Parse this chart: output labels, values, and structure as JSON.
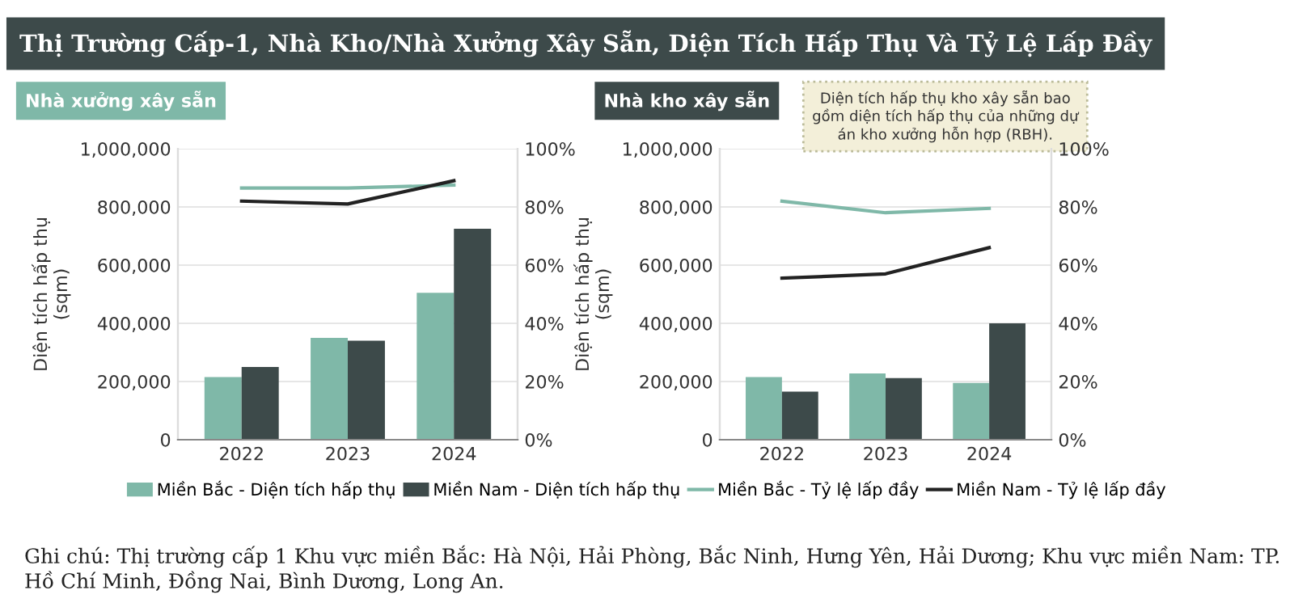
{
  "chart_data": [
    {
      "type": "bar",
      "title": "Thị Trường Cấp-1, Nhà Kho/Nhà Xưởng Xây Sẵn, Diện Tích Hấp Thụ Và Tỷ Lệ Lấp Đầy",
      "subtitle": "Nhà xưởng xây sẵn",
      "ylabel": "Diện tích hấp thụ\n(sqm)",
      "categories": [
        "2022",
        "2023",
        "2024"
      ],
      "series": [
        {
          "name": "Miền Bắc - Diện tích hấp thụ",
          "color": "#7fb8a8",
          "values": [
            215000,
            350000,
            505000
          ]
        },
        {
          "name": "Miền Nam - Diện tích hấp thụ",
          "color": "#3d4a4a",
          "values": [
            250000,
            340000,
            725000
          ]
        },
        {
          "name": "Miền Bắc - Tỷ lệ lấp đầy",
          "type": "line",
          "axis": "y2",
          "color": "#7fb8a8",
          "values": [
            86.5,
            86.5,
            87.5
          ]
        },
        {
          "name": "Miền Nam - Tỷ lệ lấp đầy",
          "type": "line",
          "axis": "y2",
          "color": "#222222",
          "values": [
            82,
            81,
            89
          ]
        }
      ],
      "ylim": [
        0,
        1000000
      ],
      "yticks": [
        0,
        {
          "value": 200000,
          "label": "200,000"
        },
        {
          "value": 400000,
          "label": "400,000"
        },
        {
          "value": 600000,
          "label": "600,000"
        },
        {
          "value": 800000,
          "label": "800,000"
        },
        {
          "value": 1000000,
          "label": "1,000,000"
        }
      ],
      "y2lim": [
        0,
        100
      ],
      "y2ticks": [
        {
          "value": 0,
          "label": "0%"
        },
        {
          "value": 20,
          "label": "20%"
        },
        {
          "value": 40,
          "label": "40%"
        },
        {
          "value": 60,
          "label": "60%"
        },
        {
          "value": 80,
          "label": "80%"
        },
        {
          "value": 100,
          "label": "100%"
        }
      ],
      "grid": "y",
      "legend": "bottom",
      "annotations": [
        "Ghi chú: Thị trường cấp 1 Khu vực miền Bắc: Hà Nội, Hải Phòng, Bắc Ninh, Hưng Yên, Hải Dương; Khu vực miền Nam: TP. Hồ Chí Minh, Đồng Nai, Bình Dương, Long An."
      ]
    },
    {
      "type": "bar",
      "subtitle": "Nhà kho xây sẵn",
      "ylabel": "Diện tích hấp thụ\n(sqm)",
      "categories": [
        "2022",
        "2023",
        "2024"
      ],
      "series": [
        {
          "color": "#7fb8a8",
          "values": [
            215000,
            228000,
            195000
          ]
        },
        {
          "color": "#3d4a4a",
          "values": [
            165000,
            212000,
            400000
          ]
        },
        {
          "type": "line",
          "axis": "y2",
          "color": "#7fb8a8",
          "values": [
            82,
            78,
            79.5
          ]
        },
        {
          "type": "line",
          "axis": "y2",
          "color": "#222222",
          "values": [
            55.5,
            57,
            66
          ]
        }
      ],
      "ylim": [
        0,
        1000000
      ],
      "yticks": [
        0,
        {
          "value": 200000,
          "label": "200,000"
        },
        {
          "value": 400000,
          "label": "400,000"
        },
        {
          "value": 600000,
          "label": "600,000"
        },
        {
          "value": 800000,
          "label": "800,000"
        },
        {
          "value": 1000000,
          "label": "1,000,000"
        }
      ],
      "y2lim": [
        0,
        100
      ],
      "y2ticks": [
        {
          "value": 0,
          "label": "0%"
        },
        {
          "value": 20,
          "label": "20%"
        },
        {
          "value": 40,
          "label": "40%"
        },
        {
          "value": 60,
          "label": "60%"
        },
        {
          "value": 80,
          "label": "80%"
        },
        {
          "value": 100,
          "label": "100%"
        }
      ],
      "grid": "y",
      "annotations": [
        "Diện tích hấp thụ kho xây sẵn bao gồm diện tích hấp thụ của những dự án kho xưởng hỗn hợp (RBH)."
      ]
    }
  ]
}
